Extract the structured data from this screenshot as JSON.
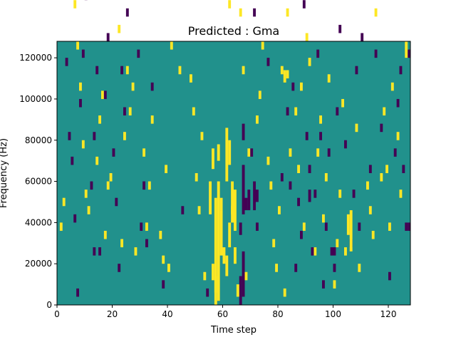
{
  "chart_data": {
    "type": "heatmap",
    "title": "Predicted : Gma",
    "xlabel": "Time step",
    "ylabel": "Frequency (Hz)",
    "xlim": [
      0,
      128
    ],
    "ylim": [
      0,
      128000
    ],
    "x_ticks": [
      0,
      20,
      40,
      60,
      80,
      100,
      120
    ],
    "y_ticks": [
      0,
      20000,
      40000,
      60000,
      80000,
      100000,
      120000
    ],
    "x_tick_labels": [
      "0",
      "20",
      "40",
      "60",
      "80",
      "100",
      "120"
    ],
    "y_tick_labels": [
      "0",
      "20000",
      "40000",
      "60000",
      "80000",
      "100000",
      "120000"
    ],
    "n_time_steps": 128,
    "n_freq_bins": 64,
    "colormap": "viridis",
    "colors": {
      "background": "#21918c",
      "high": "#fde725",
      "low": "#440154"
    },
    "grid": false,
    "background_value": 0,
    "high_value": 1,
    "low_value": -1,
    "cells": [
      {
        "t": 57,
        "f0": 0,
        "f1": 52000,
        "v": 1
      },
      {
        "t": 58,
        "f0": 2000,
        "f1": 60000,
        "v": 1
      },
      {
        "t": 56,
        "f0": 12000,
        "f1": 20000,
        "v": 1
      },
      {
        "t": 59,
        "f0": 24000,
        "f1": 46000,
        "v": 1
      },
      {
        "t": 55,
        "f0": 44000,
        "f1": 60000,
        "v": 1
      },
      {
        "t": 56,
        "f0": 66000,
        "f1": 76000,
        "v": 1
      },
      {
        "t": 58,
        "f0": 70000,
        "f1": 78000,
        "v": 1
      },
      {
        "t": 61,
        "f0": 60000,
        "f1": 86000,
        "v": 1
      },
      {
        "t": 62,
        "f0": 68000,
        "f1": 80000,
        "v": 1
      },
      {
        "t": 62,
        "f0": 28000,
        "f1": 40000,
        "v": 1
      },
      {
        "t": 63,
        "f0": 44000,
        "f1": 60000,
        "v": 1
      },
      {
        "t": 64,
        "f0": 36000,
        "f1": 56000,
        "v": 1
      },
      {
        "t": 60,
        "f0": 20000,
        "f1": 28000,
        "v": 1
      },
      {
        "t": 61,
        "f0": 14000,
        "f1": 24000,
        "v": 1
      },
      {
        "t": 66,
        "f0": 0,
        "f1": 14000,
        "v": -1
      },
      {
        "t": 67,
        "f0": 4000,
        "f1": 26000,
        "v": -1
      },
      {
        "t": 67,
        "f0": 44000,
        "f1": 68000,
        "v": -1
      },
      {
        "t": 68,
        "f0": 46000,
        "f1": 52000,
        "v": -1
      },
      {
        "t": 69,
        "f0": 46000,
        "f1": 56000,
        "v": -1
      },
      {
        "t": 66,
        "f0": 34000,
        "f1": 40000,
        "v": -1
      },
      {
        "t": 67,
        "f0": 80000,
        "f1": 88000,
        "v": -1
      },
      {
        "t": 71,
        "f0": 46000,
        "f1": 60000,
        "v": -1
      },
      {
        "t": 72,
        "f0": 50000,
        "f1": 56000,
        "v": -1
      },
      {
        "t": 38,
        "f0": 8000,
        "f1": 12000,
        "v": -1
      },
      {
        "t": 13,
        "f0": 24000,
        "f1": 28000,
        "v": -1
      },
      {
        "t": 126,
        "f0": 36000,
        "f1": 40000,
        "v": -1
      },
      {
        "t": 127,
        "f0": 36000,
        "f1": 40000,
        "v": -1
      },
      {
        "t": 100,
        "f0": 24000,
        "f1": 28000,
        "v": -1
      },
      {
        "t": 91,
        "f0": 50000,
        "f1": 56000,
        "v": -1
      },
      {
        "t": 106,
        "f0": 26000,
        "f1": 46000,
        "v": 1
      },
      {
        "t": 105,
        "f0": 34000,
        "f1": 44000,
        "v": 1
      },
      {
        "t": 82,
        "f0": 108000,
        "f1": 114000,
        "v": 1
      },
      {
        "t": 83,
        "f0": 110000,
        "f1": 114000,
        "v": 1
      },
      {
        "t": 126,
        "f0": 120000,
        "f1": 128000,
        "v": 1
      },
      {
        "t": 64,
        "f0": 20000,
        "f1": 28000,
        "v": 1
      },
      {
        "t": 65,
        "f0": 4000,
        "f1": 10000,
        "v": 1
      },
      {
        "t": 57,
        "f0": 6000,
        "f1": 14000,
        "v": 1
      },
      {
        "t": 59,
        "f0": 46000,
        "f1": 52000,
        "v": 1
      },
      {
        "t": 63,
        "f0": 40000,
        "f1": 48000,
        "v": 1
      }
    ],
    "speckles": {
      "high": [
        [
          2,
          122
        ],
        [
          3,
          120
        ],
        [
          5,
          88
        ],
        [
          6,
          72
        ],
        [
          7,
          62
        ],
        [
          8,
          52
        ],
        [
          1,
          18
        ],
        [
          2,
          24
        ],
        [
          9,
          38
        ],
        [
          10,
          26
        ],
        [
          11,
          22
        ],
        [
          12,
          110
        ],
        [
          13,
          104
        ],
        [
          14,
          34
        ],
        [
          15,
          44
        ],
        [
          16,
          50
        ],
        [
          17,
          16
        ],
        [
          18,
          28
        ],
        [
          19,
          30
        ],
        [
          20,
          124
        ],
        [
          21,
          106
        ],
        [
          22,
          66
        ],
        [
          23,
          14
        ],
        [
          24,
          40
        ],
        [
          25,
          56
        ],
        [
          26,
          46
        ],
        [
          27,
          52
        ],
        [
          28,
          12
        ],
        [
          30,
          122
        ],
        [
          31,
          36
        ],
        [
          32,
          18
        ],
        [
          33,
          28
        ],
        [
          34,
          44
        ],
        [
          35,
          120
        ],
        [
          36,
          98
        ],
        [
          37,
          16
        ],
        [
          38,
          10
        ],
        [
          39,
          32
        ],
        [
          40,
          8
        ],
        [
          41,
          62
        ],
        [
          43,
          114
        ],
        [
          44,
          56
        ],
        [
          46,
          84
        ],
        [
          47,
          88
        ],
        [
          48,
          54
        ],
        [
          49,
          46
        ],
        [
          50,
          30
        ],
        [
          51,
          22
        ],
        [
          52,
          40
        ],
        [
          53,
          6
        ],
        [
          55,
          110
        ],
        [
          56,
          78
        ],
        [
          60,
          96
        ],
        [
          61,
          124
        ],
        [
          62,
          72
        ],
        [
          64,
          104
        ],
        [
          66,
          70
        ],
        [
          67,
          56
        ],
        [
          68,
          6
        ],
        [
          69,
          36
        ],
        [
          72,
          44
        ],
        [
          73,
          50
        ],
        [
          74,
          62
        ],
        [
          75,
          120
        ],
        [
          76,
          34
        ],
        [
          77,
          28
        ],
        [
          78,
          14
        ],
        [
          79,
          8
        ],
        [
          80,
          22
        ],
        [
          81,
          56
        ],
        [
          82,
          2
        ],
        [
          83,
          70
        ],
        [
          84,
          36
        ],
        [
          85,
          82
        ],
        [
          86,
          46
        ],
        [
          87,
          32
        ],
        [
          88,
          52
        ],
        [
          89,
          18
        ],
        [
          90,
          64
        ],
        [
          91,
          58
        ],
        [
          92,
          112
        ],
        [
          93,
          12
        ],
        [
          94,
          36
        ],
        [
          95,
          44
        ],
        [
          96,
          20
        ],
        [
          97,
          30
        ],
        [
          98,
          54
        ],
        [
          99,
          76
        ],
        [
          100,
          4
        ],
        [
          101,
          14
        ],
        [
          102,
          26
        ],
        [
          103,
          48
        ],
        [
          104,
          12
        ],
        [
          108,
          42
        ],
        [
          109,
          8
        ],
        [
          111,
          122
        ],
        [
          112,
          28
        ],
        [
          113,
          22
        ],
        [
          114,
          16
        ],
        [
          115,
          70
        ],
        [
          116,
          96
        ],
        [
          117,
          30
        ],
        [
          118,
          46
        ],
        [
          119,
          32
        ],
        [
          120,
          18
        ],
        [
          121,
          52
        ],
        [
          122,
          116
        ],
        [
          123,
          40
        ],
        [
          124,
          26
        ],
        [
          125,
          114
        ]
      ],
      "low": [
        [
          2,
          80
        ],
        [
          3,
          58
        ],
        [
          4,
          40
        ],
        [
          5,
          34
        ],
        [
          6,
          20
        ],
        [
          7,
          2
        ],
        [
          8,
          48
        ],
        [
          9,
          60
        ],
        [
          10,
          74
        ],
        [
          11,
          96
        ],
        [
          12,
          28
        ],
        [
          13,
          40
        ],
        [
          14,
          56
        ],
        [
          15,
          12
        ],
        [
          17,
          50
        ],
        [
          18,
          64
        ],
        [
          19,
          78
        ],
        [
          20,
          36
        ],
        [
          21,
          24
        ],
        [
          22,
          8
        ],
        [
          23,
          56
        ],
        [
          24,
          46
        ],
        [
          25,
          70
        ],
        [
          26,
          80
        ],
        [
          27,
          92
        ],
        [
          29,
          60
        ],
        [
          30,
          18
        ],
        [
          31,
          28
        ],
        [
          32,
          14
        ],
        [
          34,
          52
        ],
        [
          36,
          118
        ],
        [
          39,
          106
        ],
        [
          45,
          22
        ],
        [
          49,
          104
        ],
        [
          54,
          2
        ],
        [
          68,
          90
        ],
        [
          70,
          36
        ],
        [
          71,
          70
        ],
        [
          72,
          18
        ],
        [
          74,
          80
        ],
        [
          76,
          58
        ],
        [
          78,
          122
        ],
        [
          80,
          106
        ],
        [
          81,
          30
        ],
        [
          83,
          46
        ],
        [
          84,
          28
        ],
        [
          85,
          52
        ],
        [
          86,
          8
        ],
        [
          87,
          24
        ],
        [
          88,
          16
        ],
        [
          89,
          72
        ],
        [
          90,
          40
        ],
        [
          91,
          32
        ],
        [
          92,
          12
        ],
        [
          93,
          26
        ],
        [
          94,
          60
        ],
        [
          95,
          40
        ],
        [
          96,
          4
        ],
        [
          97,
          18
        ],
        [
          98,
          36
        ],
        [
          99,
          12
        ],
        [
          100,
          8
        ],
        [
          101,
          46
        ],
        [
          102,
          66
        ],
        [
          103,
          90
        ],
        [
          104,
          38
        ],
        [
          105,
          98
        ],
        [
          106,
          14
        ],
        [
          107,
          26
        ],
        [
          108,
          56
        ],
        [
          109,
          18
        ],
        [
          110,
          64
        ],
        [
          111,
          84
        ],
        [
          113,
          32
        ],
        [
          114,
          108
        ],
        [
          115,
          60
        ],
        [
          117,
          42
        ],
        [
          118,
          120
        ],
        [
          120,
          6
        ],
        [
          122,
          36
        ],
        [
          123,
          48
        ],
        [
          124,
          56
        ],
        [
          125,
          32
        ],
        [
          127,
          60
        ]
      ]
    }
  }
}
